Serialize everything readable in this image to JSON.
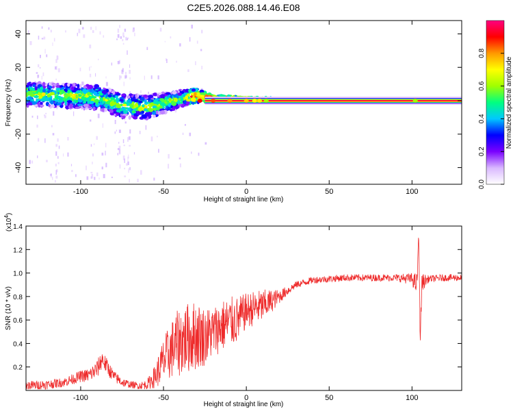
{
  "title": "C2E5.2026.088.14.46.E08",
  "chart_data": [
    {
      "type": "heatmap",
      "title": "C2E5.2026.088.14.46.E08",
      "xlabel": "Height of straight line (km)",
      "ylabel": "Frequency (Hz)",
      "xlim": [
        -133,
        130
      ],
      "ylim": [
        -50,
        48
      ],
      "xticks": [
        -100,
        -50,
        0,
        50,
        100
      ],
      "yticks": [
        -40,
        -20,
        0,
        20,
        40
      ],
      "colorbar": {
        "label": "Normalized spectral amplitude",
        "range": [
          0,
          1
        ],
        "ticks": [
          0.0,
          0.2,
          0.4,
          0.6,
          0.8
        ],
        "colors": [
          "#ffffff",
          "#d9b8ff",
          "#7a00ff",
          "#0000ff",
          "#00c8ff",
          "#00ff80",
          "#a0ff00",
          "#ffff00",
          "#ff9900",
          "#ff0000",
          "#ff0080"
        ]
      },
      "features": {
        "carrier_line_freq_hz": 0,
        "dispersed_band_center_hz": [
          [
            -133,
            4
          ],
          [
            -110,
            3
          ],
          [
            -90,
            2
          ],
          [
            -75,
            -3
          ],
          [
            -60,
            -4
          ],
          [
            -45,
            0
          ],
          [
            -30,
            3
          ],
          [
            -20,
            1
          ],
          [
            0,
            0.5
          ],
          [
            130,
            0
          ]
        ],
        "dispersed_band_halfwidth_hz": [
          [
            -133,
            7
          ],
          [
            -60,
            7
          ],
          [
            -30,
            4
          ],
          [
            -20,
            2
          ],
          [
            0,
            1.5
          ],
          [
            15,
            1
          ],
          [
            130,
            1
          ]
        ]
      }
    },
    {
      "type": "line",
      "xlabel": "Height of straight line (km)",
      "ylabel": "SNR (10 * v/v)",
      "scale_label": "(x10",
      "scale_exponent": "4",
      "xlim": [
        -133,
        130
      ],
      "ylim": [
        0,
        1.4
      ],
      "xticks": [
        -100,
        -50,
        0,
        50,
        100
      ],
      "yticks": [
        0.2,
        0.4,
        0.6,
        0.8,
        1.0,
        1.2,
        1.4
      ],
      "series": [
        {
          "name": "SNR",
          "color": "#ee2a2a",
          "x": [
            -133,
            -120,
            -110,
            -100,
            -95,
            -90,
            -87,
            -84,
            -80,
            -75,
            -70,
            -65,
            -60,
            -55,
            -50,
            -45,
            -40,
            -35,
            -30,
            -25,
            -20,
            -15,
            -10,
            -5,
            0,
            5,
            10,
            15,
            20,
            25,
            30,
            35,
            40,
            50,
            60,
            70,
            80,
            90,
            100,
            103,
            104,
            105,
            106,
            110,
            120,
            130
          ],
          "y": [
            0.04,
            0.05,
            0.07,
            0.12,
            0.13,
            0.18,
            0.27,
            0.2,
            0.12,
            0.07,
            0.05,
            0.04,
            0.05,
            0.12,
            0.25,
            0.35,
            0.42,
            0.45,
            0.47,
            0.46,
            0.5,
            0.55,
            0.58,
            0.6,
            0.68,
            0.7,
            0.72,
            0.76,
            0.8,
            0.85,
            0.9,
            0.92,
            0.94,
            0.95,
            0.96,
            0.96,
            0.96,
            0.96,
            0.95,
            0.9,
            1.35,
            0.45,
            0.92,
            0.95,
            0.96,
            0.96
          ],
          "spread": [
            0.04,
            0.04,
            0.04,
            0.05,
            0.06,
            0.08,
            0.08,
            0.07,
            0.05,
            0.04,
            0.03,
            0.03,
            0.04,
            0.1,
            0.2,
            0.25,
            0.3,
            0.3,
            0.3,
            0.25,
            0.22,
            0.22,
            0.22,
            0.2,
            0.15,
            0.15,
            0.14,
            0.1,
            0.06,
            0.04,
            0.03,
            0.03,
            0.03,
            0.03,
            0.03,
            0.03,
            0.03,
            0.03,
            0.05,
            0.1,
            0.1,
            0.1,
            0.08,
            0.03,
            0.03,
            0.03
          ]
        }
      ]
    }
  ]
}
